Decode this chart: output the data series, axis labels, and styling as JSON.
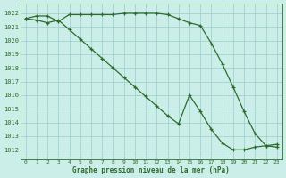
{
  "title": "Graphe pression niveau de la mer (hPa)",
  "bg_color": "#cceee8",
  "grid_color": "#99cccc",
  "line_color": "#2d6b2d",
  "ylim": [
    1011.3,
    1022.7
  ],
  "xlim": [
    -0.5,
    23.5
  ],
  "yticks": [
    1012,
    1013,
    1014,
    1015,
    1016,
    1017,
    1018,
    1019,
    1020,
    1021,
    1022
  ],
  "xticks": [
    0,
    1,
    2,
    3,
    4,
    5,
    6,
    7,
    8,
    9,
    10,
    11,
    12,
    13,
    14,
    15,
    16,
    17,
    18,
    19,
    20,
    21,
    22,
    23
  ],
  "series1_x": [
    0,
    1,
    2,
    3,
    4,
    5,
    6,
    7,
    8,
    9,
    10,
    11,
    12,
    13,
    14,
    15,
    16,
    17,
    18,
    19,
    20,
    21,
    22,
    23
  ],
  "series1_y": [
    1021.6,
    1021.8,
    1021.8,
    1021.4,
    1021.9,
    1021.9,
    1021.9,
    1021.9,
    1021.9,
    1022.0,
    1022.0,
    1022.0,
    1022.0,
    1021.9,
    1021.6,
    1021.3,
    1021.1,
    1019.8,
    1018.3,
    1016.6,
    1014.8,
    1013.2,
    1012.3,
    1012.2
  ],
  "series2_x": [
    0,
    1,
    2,
    3,
    4,
    5,
    6,
    7,
    8,
    9,
    10,
    11,
    12,
    13,
    14,
    15,
    16,
    17,
    18,
    19,
    20,
    21,
    22,
    23
  ],
  "series2_y": [
    1021.6,
    1021.5,
    1021.3,
    1021.5,
    1020.8,
    1020.1,
    1019.4,
    1018.7,
    1018.0,
    1017.3,
    1016.6,
    1015.9,
    1015.2,
    1014.5,
    1013.9,
    1016.0,
    1014.8,
    1013.5,
    1012.5,
    1012.0,
    1012.0,
    1012.2,
    1012.3,
    1012.4
  ]
}
